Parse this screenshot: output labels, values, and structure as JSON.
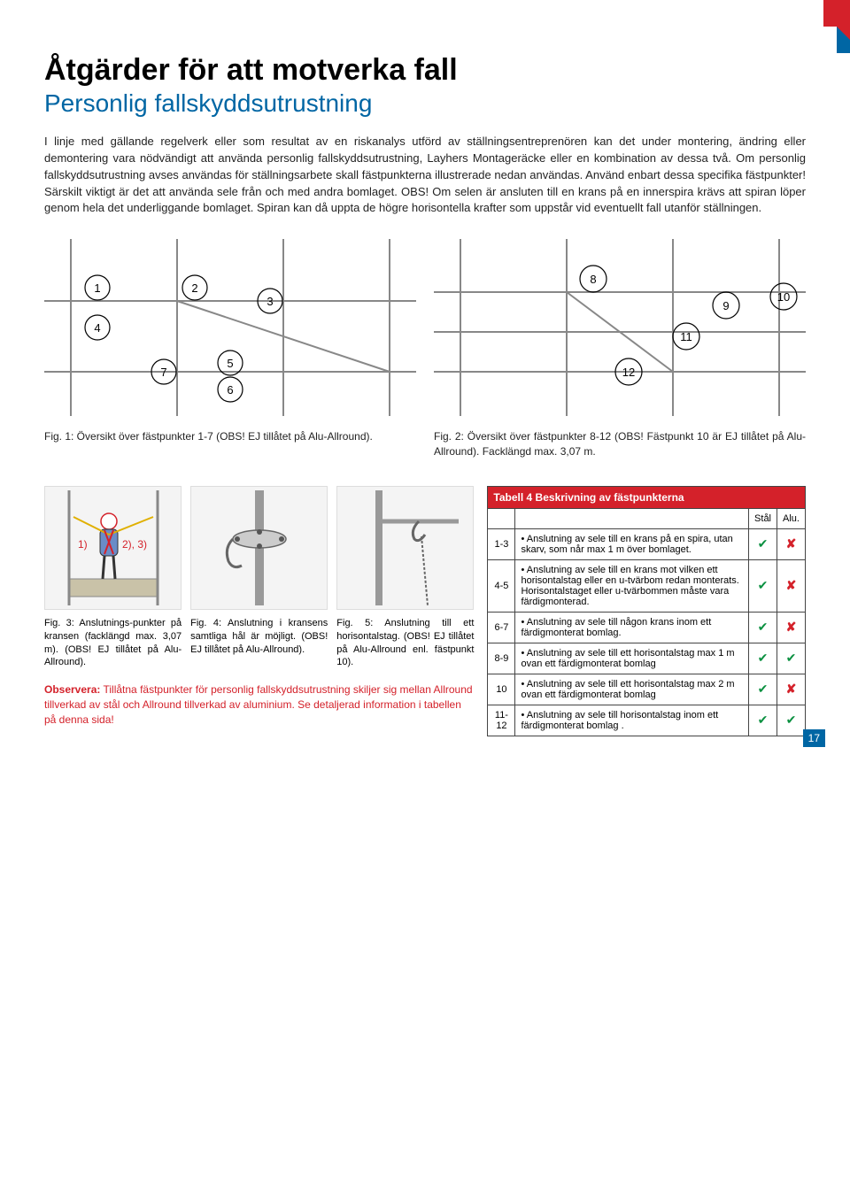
{
  "title": "Åtgärder för att motverka fall",
  "subtitle": "Personlig fallskyddsutrustning",
  "body": "I linje med gällande regelverk eller som resultat av en riskanalys utförd av ställningsentreprenören kan det under montering, ändring eller demontering vara nödvändigt att använda personlig fallskyddsutrustning, Layhers Montageräcke eller en kombination av dessa två. Om personlig fallskyddsutrustning avses användas för ställningsarbete skall fästpunkterna illustrerade nedan användas. Använd enbart dessa specifika fästpunkter! Särskilt viktigt är det att använda sele från och med andra bomlaget. OBS! Om selen är ansluten till en krans på en innerspira krävs att spiran löper genom hela det underliggande bomlaget. Spiran kan då uppta de högre horisontella krafter som uppstår vid eventuellt fall utanför ställningen.",
  "fig1_labels": [
    "1",
    "2",
    "3",
    "4",
    "5",
    "6",
    "7"
  ],
  "fig2_labels": [
    "8",
    "9",
    "10",
    "11",
    "12"
  ],
  "caption1": "Fig. 1: Översikt över fästpunkter 1-7 (OBS! EJ tillåtet på Alu-Allround).",
  "caption2": "Fig. 2: Översikt över fästpunkter 8-12 (OBS! Fästpunkt 10 är EJ tillåtet på Alu-Allround). Facklängd max. 3,07 m.",
  "fig3_labels": [
    "1)",
    "2), 3)"
  ],
  "fig3_cap": "Fig. 3: Anslutnings-punkter på kransen (facklängd max. 3,07 m). (OBS! EJ tillåtet på Alu-Allround).",
  "fig4_cap": "Fig. 4: Anslutning i kransens samtliga hål är möjligt. (OBS! EJ tillåtet på Alu-Allround).",
  "fig5_cap": "Fig. 5: Anslutning till ett horisontalstag. (OBS! EJ tillåtet på Alu-Allround enl. fästpunkt 10).",
  "observe_label": "Observera:",
  "observe_text": " Tillåtna fästpunkter för personlig fallskyddsutrustning skiljer sig mellan Allround tillverkad av stål och Allround tillverkad av aluminium. Se detaljerad information i tabellen på denna sida!",
  "tbl_title": "Tabell 4 Beskrivning av fästpunkterna",
  "col_steel": "Stål",
  "col_alu": "Alu.",
  "rows": [
    {
      "id": "1-3",
      "text": "Anslutning av sele till en krans på en spira, utan skarv, som når max 1 m över bomlaget.",
      "s": "✔",
      "a": "✘"
    },
    {
      "id": "4-5",
      "text": "Anslutning av sele till en krans mot vilken ett horisontalstag eller en u-tvärbom redan monterats. Horisontalstaget eller u-tvärbommen måste vara färdigmonterad.",
      "s": "✔",
      "a": "✘"
    },
    {
      "id": "6-7",
      "text": "Anslutning av sele till någon krans inom ett färdigmonterat bomlag.",
      "s": "✔",
      "a": "✘"
    },
    {
      "id": "8-9",
      "text": "Anslutning av sele till ett horisontalstag max 1 m ovan ett färdigmonterat bomlag",
      "s": "✔",
      "a": "✔"
    },
    {
      "id": "10",
      "text": "Anslutning av sele till ett horisontalstag max 2 m ovan ett färdigmonterat bomlag",
      "s": "✔",
      "a": "✘"
    },
    {
      "id": "11-12",
      "text": "Anslutning av sele till horisontalstag inom ett färdigmonterat bomlag .",
      "s": "✔",
      "a": "✔"
    }
  ],
  "page_number": "17"
}
